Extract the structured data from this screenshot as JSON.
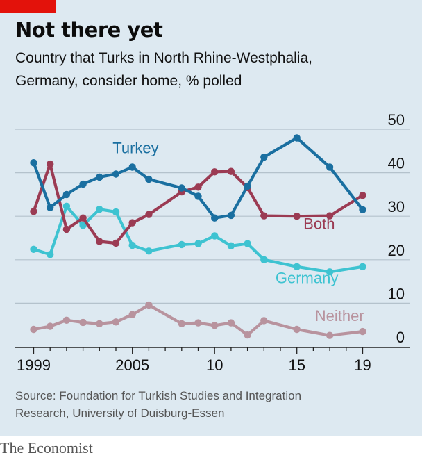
{
  "header": {
    "title": "Not there yet",
    "subtitle_line1": "Country that Turks in North Rhine-Westphalia,",
    "subtitle_line2": "Germany, consider home, % polled"
  },
  "footer": {
    "source_line1": "Source: Foundation for Turkish Studies and Integration",
    "source_line2": "Research, University of Duisburg-Essen",
    "brand": "The Economist"
  },
  "colors": {
    "background": "#dde9f1",
    "accent": "#e3120b",
    "turkey": "#1a6fa0",
    "both": "#9b3b53",
    "germany": "#3ec3d1",
    "neither": "#b8939e",
    "grid": "#b4c2cc",
    "axis": "#222222",
    "text": "#121212"
  },
  "chart_data": {
    "type": "line",
    "xlim": [
      1999,
      2019
    ],
    "ylim": [
      0,
      50
    ],
    "yticks": [
      0,
      10,
      20,
      30,
      40,
      50
    ],
    "ytick_labels": [
      "0",
      "10",
      "20",
      "30",
      "40",
      "50"
    ],
    "xticks": [
      1999,
      2005,
      2010,
      2015,
      2019
    ],
    "xtick_labels": [
      "1999",
      "2005",
      "10",
      "15",
      "19"
    ],
    "grid": true,
    "series": [
      {
        "name": "Turkey",
        "color_key": "turkey",
        "points": [
          [
            1999,
            42.3
          ],
          [
            2000,
            32.0
          ],
          [
            2001,
            35.0
          ],
          [
            2002,
            37.4
          ],
          [
            2003,
            39.0
          ],
          [
            2004,
            39.7
          ],
          [
            2005,
            41.3
          ],
          [
            2006,
            38.5
          ],
          [
            2008,
            36.5
          ],
          [
            2009,
            34.6
          ],
          [
            2010,
            29.6
          ],
          [
            2011,
            30.2
          ],
          [
            2012,
            36.9
          ],
          [
            2013,
            43.6
          ],
          [
            2015,
            48.0
          ],
          [
            2017,
            41.3
          ],
          [
            2019,
            31.5
          ]
        ]
      },
      {
        "name": "Both",
        "color_key": "both",
        "points": [
          [
            1999,
            31.1
          ],
          [
            2000,
            42.0
          ],
          [
            2001,
            27.0
          ],
          [
            2002,
            29.6
          ],
          [
            2003,
            24.2
          ],
          [
            2004,
            23.8
          ],
          [
            2005,
            28.5
          ],
          [
            2006,
            30.4
          ],
          [
            2008,
            35.6
          ],
          [
            2009,
            36.7
          ],
          [
            2010,
            40.2
          ],
          [
            2011,
            40.3
          ],
          [
            2012,
            36.6
          ],
          [
            2013,
            30.1
          ],
          [
            2015,
            30.0
          ],
          [
            2017,
            30.1
          ],
          [
            2019,
            34.8
          ]
        ]
      },
      {
        "name": "Germany",
        "color_key": "germany",
        "points": [
          [
            1999,
            22.4
          ],
          [
            2000,
            21.2
          ],
          [
            2001,
            32.3
          ],
          [
            2002,
            27.9
          ],
          [
            2003,
            31.6
          ],
          [
            2004,
            31.0
          ],
          [
            2005,
            23.3
          ],
          [
            2006,
            22.0
          ],
          [
            2008,
            23.5
          ],
          [
            2009,
            23.7
          ],
          [
            2010,
            25.5
          ],
          [
            2011,
            23.2
          ],
          [
            2012,
            23.7
          ],
          [
            2013,
            20.0
          ],
          [
            2015,
            18.4
          ],
          [
            2017,
            17.2
          ],
          [
            2019,
            18.4
          ]
        ]
      },
      {
        "name": "Neither",
        "color_key": "neither",
        "points": [
          [
            1999,
            4.0
          ],
          [
            2000,
            4.7
          ],
          [
            2001,
            6.1
          ],
          [
            2002,
            5.6
          ],
          [
            2003,
            5.3
          ],
          [
            2004,
            5.7
          ],
          [
            2005,
            7.4
          ],
          [
            2006,
            9.6
          ],
          [
            2008,
            5.3
          ],
          [
            2009,
            5.5
          ],
          [
            2010,
            4.9
          ],
          [
            2011,
            5.5
          ],
          [
            2012,
            2.7
          ],
          [
            2013,
            6.0
          ],
          [
            2015,
            4.0
          ],
          [
            2017,
            2.6
          ],
          [
            2019,
            3.5
          ]
        ]
      }
    ],
    "series_labels": [
      {
        "text": "Turkey",
        "color_key": "turkey",
        "at": [
          2003.8,
          44.5
        ]
      },
      {
        "text": "Both",
        "color_key": "both",
        "at": [
          2015.4,
          27.1
        ]
      },
      {
        "text": "Germany",
        "color_key": "germany",
        "at": [
          2013.7,
          14.6
        ]
      },
      {
        "text": "Neither",
        "color_key": "neither",
        "at": [
          2016.1,
          5.9
        ]
      }
    ]
  }
}
